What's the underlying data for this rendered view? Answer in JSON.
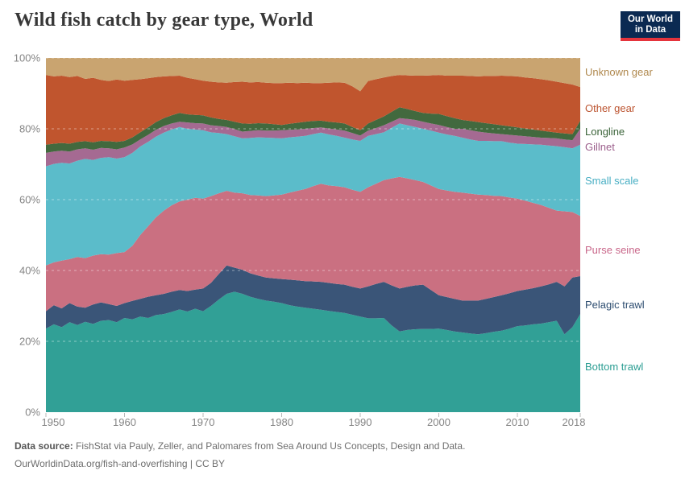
{
  "header": {
    "title": "Wild fish catch by gear type, World",
    "logo_line1": "Our World",
    "logo_line2": "in Data",
    "logo_bg_color": "#0b2a52",
    "logo_accent_color": "#e5343c"
  },
  "footer": {
    "source_label": "Data source:",
    "source_text": "FishStat via Pauly, Zeller, and Palomares from Sea Around Us Concepts, Design and Data.",
    "link_line": "OurWorldinData.org/fish-and-overfishing | CC BY"
  },
  "chart_data": {
    "type": "area",
    "stacked": true,
    "percent_normalized": true,
    "title": "Wild fish catch by gear type, World",
    "xlabel": "",
    "ylabel": "",
    "ylim": [
      0,
      100
    ],
    "grid": "dashed-horizontal",
    "legend_position": "right",
    "x_ticks": [
      1950,
      1960,
      1970,
      1980,
      1990,
      2000,
      2010,
      2018
    ],
    "y_ticks": [
      {
        "value": 0,
        "label": "0%"
      },
      {
        "value": 20,
        "label": "20%"
      },
      {
        "value": 40,
        "label": "40%"
      },
      {
        "value": 60,
        "label": "60%"
      },
      {
        "value": 80,
        "label": "80%"
      },
      {
        "value": 100,
        "label": "100%"
      }
    ],
    "x": [
      1950,
      1951,
      1952,
      1953,
      1954,
      1955,
      1956,
      1957,
      1958,
      1959,
      1960,
      1961,
      1962,
      1963,
      1964,
      1965,
      1966,
      1967,
      1968,
      1969,
      1970,
      1971,
      1972,
      1973,
      1974,
      1975,
      1976,
      1977,
      1978,
      1979,
      1980,
      1981,
      1982,
      1983,
      1984,
      1985,
      1986,
      1987,
      1988,
      1989,
      1990,
      1991,
      1992,
      1993,
      1994,
      1995,
      1996,
      1997,
      1998,
      1999,
      2000,
      2001,
      2002,
      2003,
      2004,
      2005,
      2006,
      2007,
      2008,
      2009,
      2010,
      2011,
      2012,
      2013,
      2014,
      2015,
      2016,
      2017,
      2018
    ],
    "series": [
      {
        "name": "Bottom trawl",
        "color": "#31a096",
        "label_color": "#2a9d92",
        "values": [
          23.6,
          24.8,
          24.0,
          25.4,
          24.6,
          25.5,
          24.9,
          25.8,
          26.0,
          25.4,
          26.6,
          26.2,
          27.0,
          26.6,
          27.4,
          27.7,
          28.3,
          29.0,
          28.4,
          29.2,
          28.5,
          30.0,
          31.8,
          33.4,
          34.0,
          33.4,
          32.6,
          32.0,
          31.5,
          31.2,
          30.8,
          30.2,
          29.8,
          29.5,
          29.2,
          28.9,
          28.6,
          28.3,
          28.0,
          27.5,
          27.0,
          26.5,
          26.5,
          26.6,
          24.5,
          22.8,
          23.2,
          23.4,
          23.5,
          23.5,
          23.6,
          23.2,
          22.8,
          22.5,
          22.2,
          22.0,
          22.3,
          22.7,
          23.0,
          23.6,
          24.3,
          24.5,
          24.8,
          25.0,
          25.4,
          25.8,
          22.0,
          24.0,
          27.7
        ]
      },
      {
        "name": "Pelagic trawl",
        "color": "#3a5578",
        "label_color": "#2e4e71",
        "values": [
          4.9,
          5.4,
          5.3,
          5.4,
          5.2,
          4.0,
          5.5,
          5.2,
          4.5,
          4.6,
          4.2,
          5.2,
          5.0,
          6.0,
          5.6,
          5.7,
          5.7,
          5.5,
          5.8,
          5.4,
          6.4,
          6.5,
          7.2,
          8.0,
          6.8,
          6.8,
          6.6,
          6.6,
          6.5,
          6.6,
          6.8,
          7.2,
          7.4,
          7.5,
          7.7,
          7.9,
          7.9,
          7.9,
          8.0,
          7.9,
          7.9,
          9.0,
          9.7,
          10.2,
          11.3,
          12.1,
          12.2,
          12.4,
          12.5,
          11.0,
          9.4,
          9.3,
          9.2,
          9.0,
          9.3,
          9.5,
          9.7,
          9.8,
          10.0,
          10.0,
          9.9,
          10.1,
          10.2,
          10.5,
          10.7,
          11.0,
          13.5,
          14.0,
          10.7
        ]
      },
      {
        "name": "Purse seine",
        "color": "#ca7081",
        "label_color": "#c9678a",
        "values": [
          12.9,
          12.1,
          13.5,
          12.4,
          14.0,
          14.0,
          13.8,
          13.6,
          14.0,
          14.9,
          14.4,
          15.6,
          18.0,
          19.9,
          22.0,
          23.5,
          24.4,
          25.0,
          25.8,
          25.9,
          25.4,
          24.5,
          22.8,
          21.1,
          21.2,
          21.6,
          22.1,
          22.6,
          23.0,
          23.4,
          23.8,
          24.6,
          25.3,
          26.0,
          26.9,
          27.7,
          27.5,
          27.6,
          27.5,
          27.4,
          27.3,
          28.0,
          28.3,
          28.7,
          30.2,
          31.5,
          30.6,
          29.7,
          29.0,
          29.5,
          30.0,
          30.1,
          30.2,
          30.5,
          30.2,
          29.9,
          29.3,
          28.6,
          28.0,
          27.0,
          26.1,
          25.1,
          24.1,
          23.0,
          21.6,
          20.1,
          21.2,
          18.5,
          17.0
        ]
      },
      {
        "name": "Small scale",
        "color": "#5bbcca",
        "label_color": "#49afc4",
        "values": [
          28.0,
          27.8,
          27.6,
          27.0,
          27.2,
          28.0,
          27.0,
          27.2,
          27.5,
          26.7,
          26.8,
          26.2,
          25.0,
          23.8,
          22.8,
          22.0,
          21.4,
          21.0,
          20.0,
          19.3,
          19.3,
          18.0,
          17.0,
          16.0,
          15.9,
          15.5,
          16.1,
          16.4,
          16.5,
          16.2,
          15.9,
          15.6,
          15.3,
          15.0,
          14.7,
          14.4,
          14.4,
          14.2,
          14.0,
          14.2,
          14.4,
          14.5,
          14.0,
          13.5,
          14.3,
          15.1,
          15.0,
          15.0,
          15.0,
          15.5,
          15.9,
          15.8,
          15.8,
          15.5,
          15.3,
          15.2,
          15.3,
          15.4,
          15.5,
          15.5,
          15.5,
          16.0,
          16.5,
          17.0,
          17.6,
          18.2,
          18.1,
          18.0,
          20.1
        ]
      },
      {
        "name": "Gillnet",
        "color": "#a56a92",
        "label_color": "#9c5f8c",
        "values": [
          3.8,
          3.5,
          3.4,
          3.4,
          3.2,
          3.0,
          2.9,
          2.8,
          2.5,
          2.6,
          2.7,
          2.4,
          2.0,
          2.0,
          1.9,
          1.9,
          1.7,
          1.5,
          1.8,
          1.8,
          1.9,
          2.0,
          2.0,
          2.0,
          2.0,
          1.9,
          2.0,
          2.0,
          2.0,
          2.1,
          2.3,
          2.1,
          2.0,
          2.0,
          1.7,
          1.5,
          1.7,
          1.8,
          2.0,
          1.8,
          1.5,
          1.5,
          1.7,
          2.0,
          1.7,
          1.5,
          1.8,
          2.0,
          2.0,
          2.0,
          2.2,
          2.1,
          2.0,
          2.5,
          2.6,
          2.6,
          2.3,
          2.2,
          2.0,
          2.2,
          2.3,
          2.2,
          2.1,
          2.0,
          2.1,
          2.2,
          2.2,
          2.3,
          4.5
        ]
      },
      {
        "name": "Longline",
        "color": "#42693e",
        "label_color": "#3a6338",
        "values": [
          2.3,
          2.2,
          2.2,
          2.2,
          2.1,
          2.0,
          2.1,
          2.0,
          2.0,
          2.1,
          1.9,
          2.0,
          2.0,
          2.1,
          2.2,
          2.2,
          2.3,
          2.5,
          2.3,
          2.3,
          2.3,
          2.2,
          2.0,
          2.0,
          2.1,
          2.3,
          2.0,
          2.0,
          2.0,
          1.8,
          1.5,
          1.7,
          1.9,
          2.0,
          2.0,
          1.9,
          1.9,
          2.0,
          2.0,
          1.7,
          1.5,
          2.0,
          2.3,
          2.5,
          2.8,
          3.1,
          2.8,
          2.5,
          2.5,
          2.8,
          3.1,
          3.1,
          3.0,
          2.5,
          2.6,
          2.7,
          2.7,
          2.6,
          2.5,
          2.4,
          2.3,
          2.2,
          2.1,
          2.0,
          1.8,
          1.6,
          1.7,
          1.7,
          2.3
        ]
      },
      {
        "name": "Other gear",
        "color": "#c0552e",
        "label_color": "#bc5430",
        "values": [
          19.7,
          19.0,
          19.0,
          18.8,
          18.6,
          17.6,
          18.2,
          17.2,
          17.0,
          17.6,
          17.0,
          16.2,
          15.0,
          13.9,
          12.7,
          11.8,
          11.1,
          10.5,
          10.3,
          10.1,
          9.8,
          10.1,
          10.3,
          10.5,
          11.2,
          11.8,
          11.7,
          11.6,
          11.5,
          11.6,
          11.8,
          11.6,
          11.2,
          11.0,
          10.7,
          10.6,
          11.0,
          11.3,
          11.5,
          11.5,
          11.0,
          12.0,
          11.5,
          11.0,
          10.1,
          9.1,
          9.5,
          10.0,
          10.5,
          10.8,
          11.0,
          11.4,
          12.0,
          12.5,
          12.7,
          12.9,
          13.3,
          13.6,
          14.0,
          14.2,
          14.4,
          14.4,
          14.5,
          14.5,
          14.5,
          14.4,
          14.2,
          14.0,
          9.5
        ]
      },
      {
        "name": "Unknown gear",
        "color": "#c9a470",
        "label_color": "#b0894f",
        "values": [
          4.8,
          5.2,
          5.0,
          5.4,
          5.1,
          5.9,
          5.6,
          6.2,
          6.5,
          6.1,
          6.4,
          6.2,
          6.0,
          5.7,
          5.4,
          5.2,
          5.1,
          5.0,
          5.6,
          6.0,
          6.4,
          6.7,
          6.9,
          7.0,
          6.8,
          6.7,
          6.9,
          6.8,
          7.0,
          7.1,
          7.1,
          7.0,
          7.1,
          7.0,
          7.1,
          7.1,
          7.0,
          6.9,
          7.0,
          8.0,
          9.4,
          6.5,
          6.0,
          5.5,
          5.1,
          4.8,
          4.9,
          5.0,
          5.0,
          4.9,
          4.8,
          5.0,
          5.0,
          5.0,
          5.1,
          5.2,
          5.1,
          5.1,
          5.0,
          5.1,
          5.2,
          5.5,
          5.7,
          6.0,
          6.3,
          6.7,
          7.1,
          7.5,
          8.2
        ]
      }
    ]
  }
}
